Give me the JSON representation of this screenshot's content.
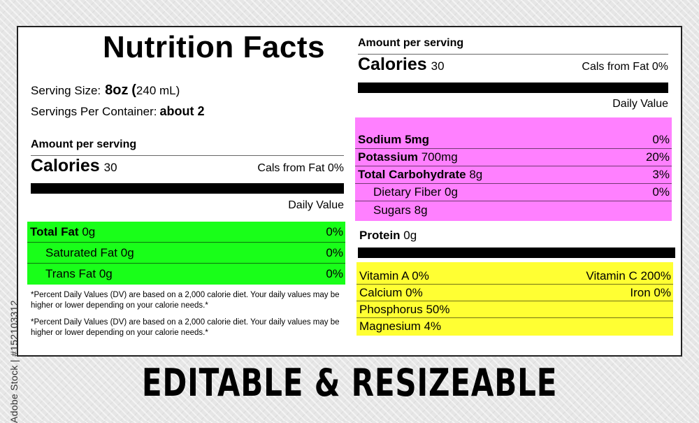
{
  "title": "Nutrition Facts",
  "serving": {
    "size_label": "Serving Size:",
    "size_value": "8oz",
    "size_paren_open": "(",
    "size_ml": "240 mL)",
    "per_container_label": "Servings Per Container:",
    "per_container_value": "about 2"
  },
  "left": {
    "amount_per_serving": "Amount per serving",
    "calories_label": "Calories",
    "calories_value": "30",
    "cals_from_fat": "Cals from Fat 0%",
    "daily_value": "Daily Value",
    "fats": [
      {
        "name": "Total Fat",
        "amount": "0g",
        "pct": "0%",
        "bold": true
      },
      {
        "name": "Saturated Fat",
        "amount": "0g",
        "pct": "0%",
        "bold": false
      },
      {
        "name": "Trans Fat",
        "amount": "0g",
        "pct": "0%",
        "bold": false
      }
    ],
    "footnote_1": "*Percent Daily Values (DV) are based on a 2,000 calorie diet. Your daily values may be higher or lower depending on your calorie needs.*",
    "footnote_2": "*Percent Daily Values (DV) are based on a 2,000 calorie diet. Your daily values may be higher or lower depending on your calorie needs.*"
  },
  "right": {
    "amount_per_serving": "Amount per serving",
    "calories_label": "Calories",
    "calories_value": "30",
    "cals_from_fat": "Cals from Fat 0%",
    "daily_value": "Daily Value",
    "nutrients": [
      {
        "name": "Sodium",
        "amount": "5mg",
        "pct": "0%"
      },
      {
        "name": "Potassium",
        "amount": "700mg",
        "pct": "20%"
      },
      {
        "name": "Total Carbohydrate",
        "amount": "8g",
        "pct": "3%"
      },
      {
        "name": "Dietary Fiber",
        "amount": "0g",
        "pct": "0%"
      },
      {
        "name": "Sugars",
        "amount": "8g",
        "pct": ""
      }
    ],
    "protein_label": "Protein",
    "protein_value": "0g",
    "vitamins": [
      {
        "left": "Vitamin A 0%",
        "right": "Vitamin C 200%"
      },
      {
        "left": "Calcium 0%",
        "right": "Iron 0%"
      },
      {
        "left": "Phosphorus 50%",
        "right": ""
      },
      {
        "left": "Magnesium 4%",
        "right": ""
      }
    ]
  },
  "banner": "EDITABLE & RESIZEABLE",
  "stock_id": "Adobe Stock | #152103312",
  "colors": {
    "fat_block": "#19ff19",
    "mineral_block": "#ff80ff",
    "vitamin_block": "#ffff33"
  }
}
